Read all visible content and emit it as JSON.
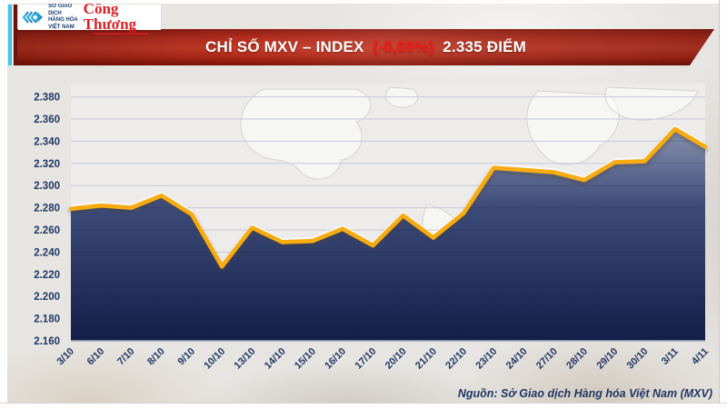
{
  "header": {
    "logo": {
      "exchange_name_lines": [
        "SỞ GIAO DỊCH",
        "HÀNG HÓA",
        "VIỆT NAM"
      ],
      "newspaper": "Công Thương"
    },
    "banner": {
      "title_main": "CHỈ SỐ MXV – INDEX",
      "title_change": "(-0,69%)",
      "title_value": "2.335 ĐIỂM"
    }
  },
  "chart_data": {
    "type": "area",
    "title": "Chỉ số MXV – INDEX",
    "categories": [
      "3/10",
      "6/10",
      "7/10",
      "8/10",
      "9/10",
      "10/10",
      "13/10",
      "14/10",
      "15/10",
      "16/10",
      "17/10",
      "20/10",
      "21/10",
      "22/10",
      "23/10",
      "24/10",
      "27/10",
      "28/10",
      "29/10",
      "30/10",
      "3/11",
      "4/11"
    ],
    "values": [
      2.279,
      2.282,
      2.28,
      2.291,
      2.274,
      2.227,
      2.262,
      2.249,
      2.25,
      2.261,
      2.246,
      2.273,
      2.253,
      2.275,
      2.316,
      2.314,
      2.312,
      2.305,
      2.321,
      2.322,
      2.351,
      2.335
    ],
    "ylim": [
      2.16,
      2.38
    ],
    "ytick_labels": [
      "2.160",
      "2.180",
      "2.200",
      "2.220",
      "2.240",
      "2.260",
      "2.280",
      "2.300",
      "2.320",
      "2.340",
      "2.360",
      "2.380"
    ],
    "grid": true,
    "legend": "none",
    "colors": {
      "line_gold": "#f8ab10",
      "fill_top": "#8b95b0",
      "fill_mid": "#3d4b79",
      "fill_bottom": "#131f48",
      "label_navy": "#1f3864",
      "gridline": "#c3c9d6",
      "plot_bg": "#edecea"
    }
  },
  "footer": {
    "source": "Nguồn: Sở Giao dịch Hàng hóa Việt Nam (MXV)"
  }
}
